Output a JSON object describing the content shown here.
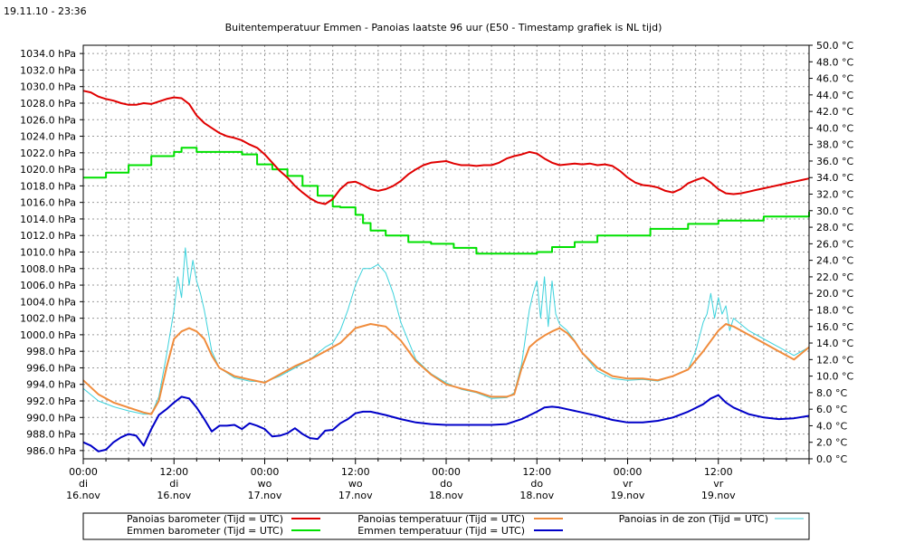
{
  "timestamp": "19.11.10 - 23:36",
  "chart_data": {
    "type": "line",
    "title": "Buitentemperatuur Emmen - Panoias laatste 96 uur (E50 - Timestamp grafiek is NL tijd)",
    "x_unit": "hours since 16 nov 00:00",
    "xlim": [
      0,
      96
    ],
    "x_ticks": [
      {
        "x": 0,
        "time": "00:00",
        "day": "di",
        "date": "16.nov"
      },
      {
        "x": 12,
        "time": "12:00",
        "day": "di",
        "date": "16.nov"
      },
      {
        "x": 24,
        "time": "00:00",
        "day": "wo",
        "date": "17.nov"
      },
      {
        "x": 36,
        "time": "12:00",
        "day": "wo",
        "date": "17.nov"
      },
      {
        "x": 48,
        "time": "00:00",
        "day": "do",
        "date": "18.nov"
      },
      {
        "x": 60,
        "time": "12:00",
        "day": "do",
        "date": "18.nov"
      },
      {
        "x": 72,
        "time": "00:00",
        "day": "vr",
        "date": "19.nov"
      },
      {
        "x": 84,
        "time": "12:00",
        "day": "vr",
        "date": "19.nov"
      }
    ],
    "y_left": {
      "unit": "hPa",
      "lim": [
        985.0,
        1035.0
      ],
      "ticks": [
        986,
        988,
        990,
        992,
        994,
        996,
        998,
        1000,
        1002,
        1004,
        1006,
        1008,
        1010,
        1012,
        1014,
        1016,
        1018,
        1020,
        1022,
        1024,
        1026,
        1028,
        1030,
        1032,
        1034
      ]
    },
    "y_right": {
      "unit": "°C",
      "lim": [
        0,
        50
      ],
      "ticks": [
        0,
        2,
        4,
        6,
        8,
        10,
        12,
        14,
        16,
        18,
        20,
        22,
        24,
        26,
        28,
        30,
        32,
        34,
        36,
        38,
        40,
        42,
        44,
        46,
        48,
        50
      ]
    },
    "series": [
      {
        "name": "Panoias barometer (Tijd = UTC)",
        "axis": "left",
        "color": "#e00000",
        "step": false,
        "x": [
          0,
          1,
          2,
          3,
          4,
          5,
          6,
          7,
          8,
          9,
          10,
          11,
          12,
          13,
          14,
          15,
          16,
          17,
          18,
          19,
          20,
          21,
          22,
          23,
          24,
          25,
          26,
          27,
          28,
          29,
          30,
          31,
          32,
          33,
          34,
          35,
          36,
          37,
          38,
          39,
          40,
          41,
          42,
          43,
          44,
          45,
          46,
          47,
          48,
          49,
          50,
          51,
          52,
          53,
          54,
          55,
          56,
          57,
          58,
          59,
          60,
          61,
          62,
          63,
          64,
          65,
          66,
          67,
          68,
          69,
          70,
          71,
          72,
          73,
          74,
          75,
          76,
          77,
          78,
          79,
          80,
          81,
          82,
          83,
          84,
          85,
          86,
          87,
          88,
          89,
          90,
          91,
          92,
          93,
          94,
          95,
          96
        ],
        "y": [
          1029.5,
          1029.3,
          1028.8,
          1028.5,
          1028.3,
          1028.0,
          1027.8,
          1027.8,
          1028.0,
          1027.9,
          1028.2,
          1028.5,
          1028.7,
          1028.6,
          1027.9,
          1026.5,
          1025.6,
          1025.0,
          1024.4,
          1024.0,
          1023.8,
          1023.5,
          1023.0,
          1022.6,
          1021.8,
          1020.8,
          1019.8,
          1019.0,
          1018.0,
          1017.2,
          1016.5,
          1016.0,
          1015.8,
          1016.4,
          1017.6,
          1018.4,
          1018.5,
          1018.1,
          1017.6,
          1017.4,
          1017.6,
          1018.0,
          1018.6,
          1019.4,
          1020.0,
          1020.5,
          1020.8,
          1020.9,
          1021.0,
          1020.7,
          1020.5,
          1020.5,
          1020.4,
          1020.5,
          1020.5,
          1020.8,
          1021.3,
          1021.6,
          1021.8,
          1022.1,
          1021.9,
          1021.3,
          1020.8,
          1020.5,
          1020.6,
          1020.7,
          1020.6,
          1020.7,
          1020.5,
          1020.6,
          1020.4,
          1019.8,
          1019.0,
          1018.4,
          1018.1,
          1018.0,
          1017.8,
          1017.4,
          1017.2,
          1017.6,
          1018.3,
          1018.7,
          1019.0,
          1018.4,
          1017.6,
          1017.1,
          1017.0,
          1017.1,
          1017.3,
          1017.5,
          1017.7,
          1017.9,
          1018.1,
          1018.3,
          1018.5,
          1018.7,
          1018.9
        ]
      },
      {
        "name": "Emmen barometer (Tijd = UTC)",
        "axis": "left",
        "color": "#00e000",
        "step": true,
        "x": [
          0,
          3,
          6,
          9,
          12,
          13,
          15,
          18,
          21,
          23,
          25,
          27,
          29,
          31,
          33,
          34,
          36,
          37,
          38,
          40,
          43,
          46,
          49,
          52,
          59,
          60,
          62,
          65,
          68,
          75,
          80,
          84,
          90,
          96
        ],
        "y": [
          1019.0,
          1019.6,
          1020.5,
          1021.6,
          1022.1,
          1022.6,
          1022.1,
          1022.1,
          1021.8,
          1020.6,
          1020.0,
          1019.2,
          1018.0,
          1016.8,
          1015.5,
          1015.4,
          1014.5,
          1013.5,
          1012.6,
          1012.0,
          1011.2,
          1011.0,
          1010.5,
          1009.8,
          1009.8,
          1010.0,
          1010.6,
          1011.2,
          1012.0,
          1012.8,
          1013.4,
          1013.8,
          1014.3,
          1014.9
        ]
      },
      {
        "name": "Panoias temperatuur (Tijd = UTC)",
        "axis": "right",
        "color": "#f08c3c",
        "step": false,
        "x": [
          0,
          2,
          4,
          6,
          8,
          9,
          10,
          11,
          12,
          13,
          14,
          15,
          16,
          17,
          18,
          20,
          22,
          24,
          26,
          28,
          30,
          32,
          34,
          36,
          38,
          40,
          42,
          44,
          46,
          48,
          50,
          52,
          54,
          56,
          57,
          58,
          59,
          60,
          61,
          62,
          63,
          64,
          65,
          66,
          68,
          70,
          72,
          74,
          76,
          78,
          80,
          82,
          84,
          85,
          86,
          87,
          88,
          90,
          92,
          94,
          96
        ],
        "y": [
          9.5,
          7.8,
          6.8,
          6.2,
          5.6,
          5.4,
          7.0,
          11.0,
          14.5,
          15.4,
          15.8,
          15.4,
          14.5,
          12.5,
          11.0,
          10.0,
          9.6,
          9.2,
          10.2,
          11.2,
          12.0,
          13.0,
          14.0,
          15.8,
          16.3,
          16.0,
          14.3,
          11.8,
          10.2,
          9.0,
          8.5,
          8.1,
          7.5,
          7.5,
          7.8,
          11.0,
          13.5,
          14.3,
          14.9,
          15.4,
          15.8,
          15.2,
          14.2,
          12.8,
          11.0,
          10.0,
          9.7,
          9.7,
          9.5,
          10.0,
          10.8,
          13.0,
          15.5,
          16.3,
          16.0,
          15.5,
          15.0,
          14.0,
          13.0,
          12.0,
          13.5
        ]
      },
      {
        "name": "Emmen temperatuur (Tijd = UTC)",
        "axis": "right",
        "color": "#0000c8",
        "step": false,
        "x": [
          0,
          1,
          2,
          3,
          4,
          5,
          6,
          7,
          8,
          9,
          10,
          11,
          12,
          13,
          14,
          15,
          16,
          17,
          18,
          19,
          20,
          21,
          22,
          23,
          24,
          25,
          26,
          27,
          28,
          29,
          30,
          31,
          32,
          33,
          34,
          35,
          36,
          37,
          38,
          40,
          42,
          44,
          46,
          48,
          50,
          52,
          54,
          56,
          58,
          60,
          61,
          62,
          63,
          64,
          66,
          68,
          70,
          72,
          74,
          76,
          78,
          80,
          82,
          83,
          84,
          85,
          86,
          88,
          90,
          92,
          94,
          96
        ],
        "y": [
          2.0,
          1.6,
          0.9,
          1.1,
          2.0,
          2.6,
          3.0,
          2.8,
          1.6,
          3.6,
          5.3,
          6.0,
          6.8,
          7.5,
          7.3,
          6.2,
          4.8,
          3.3,
          4.0,
          4.0,
          4.1,
          3.6,
          4.3,
          4.0,
          3.6,
          2.7,
          2.8,
          3.1,
          3.7,
          3.0,
          2.5,
          2.4,
          3.4,
          3.5,
          4.3,
          4.8,
          5.5,
          5.7,
          5.7,
          5.3,
          4.8,
          4.4,
          4.2,
          4.1,
          4.1,
          4.1,
          4.1,
          4.2,
          4.8,
          5.7,
          6.2,
          6.3,
          6.2,
          6.0,
          5.6,
          5.2,
          4.7,
          4.4,
          4.4,
          4.6,
          5.0,
          5.7,
          6.6,
          7.3,
          7.7,
          6.8,
          6.2,
          5.4,
          5.0,
          4.8,
          4.9,
          5.2
        ]
      },
      {
        "name": "Panoias in de zon (Tijd = UTC)",
        "axis": "right",
        "color": "#3cd2dc",
        "step": false,
        "x": [
          0,
          2,
          4,
          6,
          8,
          9,
          10,
          11,
          12,
          12.5,
          13,
          13.5,
          14,
          14.5,
          15,
          15.5,
          16,
          17,
          18,
          20,
          22,
          24,
          26,
          28,
          30,
          32,
          33,
          34,
          35,
          36,
          37,
          38,
          39,
          40,
          41,
          42,
          44,
          46,
          48,
          50,
          52,
          54,
          56,
          57,
          58,
          59,
          59.5,
          60,
          60.5,
          61,
          61.5,
          62,
          62.5,
          63,
          64,
          65,
          66,
          68,
          70,
          72,
          74,
          76,
          78,
          80,
          81,
          82,
          82.5,
          83,
          83.5,
          84,
          84.5,
          85,
          85.5,
          86,
          88,
          90,
          92,
          94,
          96
        ],
        "y": [
          8.5,
          7.0,
          6.3,
          5.8,
          5.4,
          5.4,
          7.5,
          12.5,
          18.0,
          22.0,
          19.5,
          25.5,
          21.0,
          24.0,
          21.5,
          20.0,
          18.0,
          13.0,
          11.0,
          9.8,
          9.4,
          9.3,
          10.0,
          11.0,
          12.0,
          13.5,
          14.0,
          15.5,
          18.0,
          21.0,
          23.0,
          23.0,
          23.5,
          22.5,
          20.0,
          16.5,
          12.0,
          10.3,
          9.2,
          8.4,
          8.0,
          7.3,
          7.4,
          8.0,
          11.5,
          18.0,
          20.0,
          21.5,
          17.0,
          22.0,
          16.0,
          21.5,
          17.5,
          16.3,
          15.5,
          14.3,
          12.8,
          10.6,
          9.7,
          9.5,
          9.6,
          9.4,
          10.0,
          10.8,
          13.0,
          16.5,
          17.5,
          20.0,
          17.0,
          19.5,
          17.5,
          18.5,
          15.5,
          17.0,
          15.5,
          14.5,
          13.5,
          12.5,
          13.5
        ]
      }
    ]
  }
}
